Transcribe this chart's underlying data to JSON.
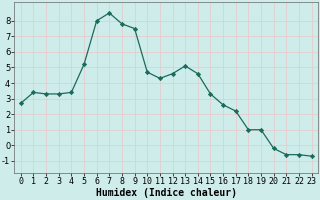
{
  "x": [
    0,
    1,
    2,
    3,
    4,
    5,
    6,
    7,
    8,
    9,
    10,
    11,
    12,
    13,
    14,
    15,
    16,
    17,
    18,
    19,
    20,
    21,
    22,
    23
  ],
  "y": [
    2.7,
    3.4,
    3.3,
    3.3,
    3.4,
    5.2,
    8.0,
    8.5,
    7.8,
    7.5,
    4.7,
    4.3,
    4.6,
    5.1,
    4.6,
    3.3,
    2.6,
    2.2,
    1.0,
    1.0,
    -0.2,
    -0.6,
    -0.6,
    -0.7
  ],
  "line_color": "#1a6b5a",
  "marker": "D",
  "marker_size": 2.2,
  "bg_color": "#ceecea",
  "grid_color": "#e8c8c8",
  "xlabel": "Humidex (Indice chaleur)",
  "ylim": [
    -1.8,
    9.2
  ],
  "xlim": [
    -0.5,
    23.5
  ],
  "yticks": [
    -1,
    0,
    1,
    2,
    3,
    4,
    5,
    6,
    7,
    8
  ],
  "xticks": [
    0,
    1,
    2,
    3,
    4,
    5,
    6,
    7,
    8,
    9,
    10,
    11,
    12,
    13,
    14,
    15,
    16,
    17,
    18,
    19,
    20,
    21,
    22,
    23
  ],
  "label_fontsize": 7,
  "tick_fontsize": 6
}
